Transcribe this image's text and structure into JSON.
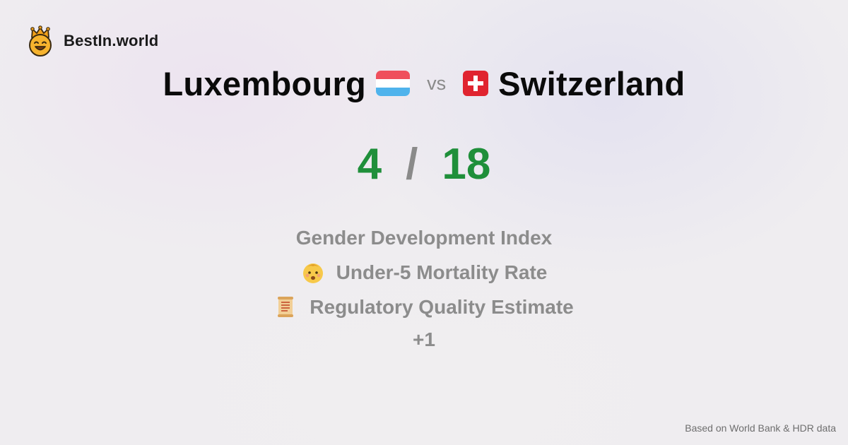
{
  "brand": {
    "name": "BestIn.world",
    "logo_icon": "crowned-smiley-icon"
  },
  "comparison": {
    "left_country": "Luxembourg",
    "left_flag_icon": "luxembourg-flag-icon",
    "vs_label": "vs",
    "right_country": "Switzerland",
    "right_flag_icon": "switzerland-flag-icon"
  },
  "score": {
    "left": "4",
    "separator": "/",
    "right": "18"
  },
  "metrics": [
    {
      "label": "Gender Development Index",
      "icon": ""
    },
    {
      "label": "Under-5 Mortality Rate",
      "icon": "baby-face-icon"
    },
    {
      "label": "Regulatory Quality Estimate",
      "icon": "scroll-icon"
    }
  ],
  "more_label": "+1",
  "footer": {
    "source_note": "Based on World Bank & HDR data"
  },
  "colors": {
    "score_green": "#1f8f3a",
    "muted_gray": "#8c8c8c",
    "luxembourg_red": "#ef4f5c",
    "luxembourg_blue": "#4fb3ec",
    "switzerland_red": "#e0242f"
  }
}
